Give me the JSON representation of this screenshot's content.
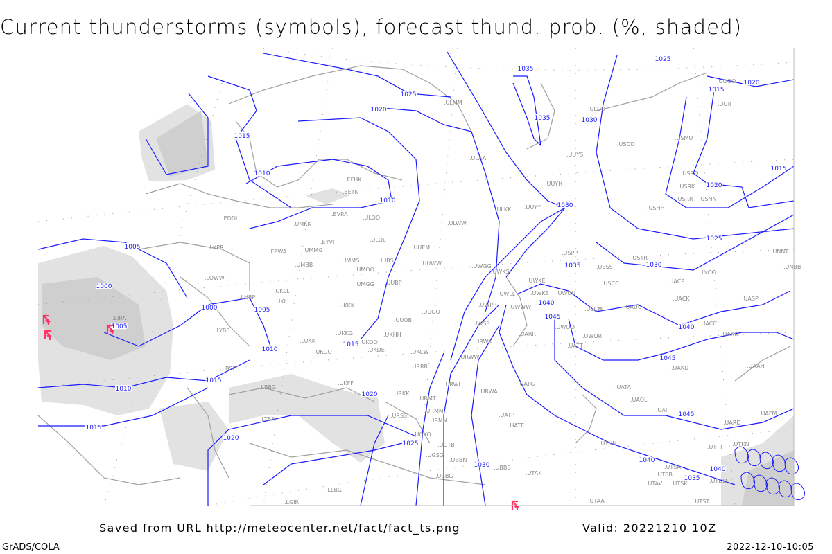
{
  "title": "Current thunderstorms (symbols), forecast thund. prob. (%, shaded)",
  "footer": {
    "saved": "Saved from URL http://meteocenter.net/fact/fact_ts.png",
    "valid": "Valid: 20221210 10Z",
    "software": "GrADS/COLA",
    "timestamp": "2022-12-10-10:05"
  },
  "colors": {
    "isobar": "#1a1aff",
    "coastline": "#a0a0a0",
    "shading_light": "#e2e2e2",
    "shading_dark": "#cfcfcf",
    "thunderstorm_symbol": "#ff3366",
    "station_label": "#8a8a8a"
  },
  "map": {
    "isobar_labels": [
      "1035",
      "1025",
      "1015",
      "1020",
      "1025",
      "1020",
      "1035",
      "1030",
      "1015",
      "1010",
      "1010",
      "1015",
      "1020",
      "1030",
      "1025",
      "1005",
      "1035",
      "1030",
      "1000",
      "1005",
      "1000",
      "1040",
      "1045",
      "1005",
      "1015",
      "1010",
      "1040",
      "1045",
      "1015",
      "1010",
      "1020",
      "1045",
      "1015",
      "1020",
      "1025",
      "1030",
      "1040",
      "1040",
      "1035"
    ],
    "stations": [
      "EDDI",
      "LKPR",
      "EPWA",
      "UMKK",
      "EVRA",
      "ULOO",
      "EYVI",
      "UMMG",
      "ULOL",
      "UMMS",
      "UUBS",
      "UMOO",
      "UMBB",
      "UUEM",
      "UUWW",
      "UWGG",
      "UMGG",
      "UUBP",
      "UKLL",
      "UKLI",
      "LHBP",
      "LOWW",
      "UKKK",
      "UUOO",
      "UUOB",
      "UKHH",
      "UKOO",
      "UKKG",
      "UKDE",
      "LUKK",
      "UKOO",
      "UKCW",
      "URRR",
      "LBSF",
      "LYBE",
      "LIRA",
      "LBBG",
      "UKFF",
      "URKK",
      "URMT",
      "URMM",
      "URMN",
      "URWI",
      "URWA",
      "UATG",
      "UATA",
      "UAOL",
      "UAII",
      "UAFM",
      "UAAH",
      "UAKD",
      "UAKK",
      "UACC",
      "UASP",
      "UACK",
      "UAUU",
      "USCM",
      "UWOO",
      "UWOR",
      "UATT",
      "UARR",
      "UWWW",
      "UWKB",
      "UWUU",
      "UWKE",
      "UWLL",
      "UWPP",
      "UWSS",
      "URWK",
      "URWW",
      "USCC",
      "UACP",
      "UNOO",
      "USSS",
      "USPP",
      "USTR",
      "UNNT",
      "UNBB",
      "USHH",
      "USRR",
      "USNN",
      "USRK",
      "USRO",
      "USMU",
      "USDD",
      "UUYS",
      "UUYH",
      "UUYY",
      "ULKK",
      "ULAA",
      "ULMM",
      "ULDD",
      "UOOO",
      "UOII",
      "UWKS",
      "ULWW",
      "EFHK",
      "EETN",
      "UATE",
      "UATP",
      "UTNN",
      "UBBB",
      "UTAK",
      "UTSA",
      "UTSB",
      "UTSK",
      "UTAV",
      "UTAA",
      "UTST",
      "UTDD",
      "UTTT",
      "UTKN",
      "UARD",
      "UGTB",
      "UGKO",
      "UGSG",
      "UBBN",
      "UBBG",
      "URSS",
      "LTBA",
      "LGIR",
      "LLBG"
    ],
    "thunderstorm_symbols": 4,
    "symbol_icon": "thunderstorm-icon"
  }
}
